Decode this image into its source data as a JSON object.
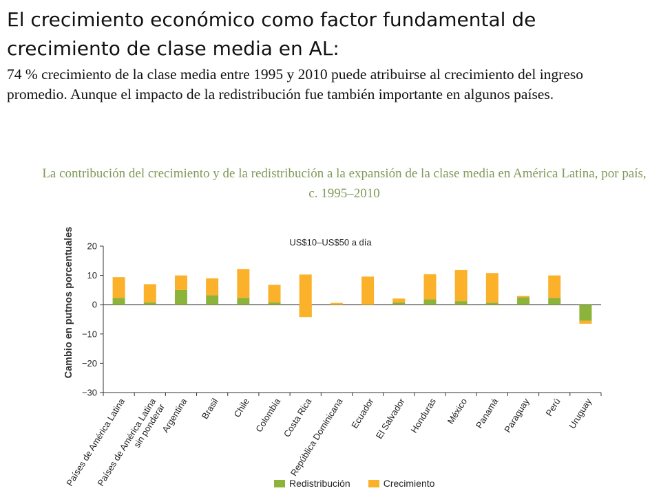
{
  "slide": {
    "heading": "El crecimiento económico como factor fundamental de crecimiento de clase media en AL:",
    "subheading": "74 % crecimiento de la clase media entre 1995 y 2010 puede atribuirse al crecimiento del ingreso promedio. Aunque el impacto de la redistribución fue también importante en algunos países."
  },
  "colors": {
    "redistribucion": "#8db43a",
    "crecimiento": "#fbb12a",
    "title": "#7f9a58",
    "axis": "#333333"
  },
  "chart_data": {
    "type": "bar",
    "stacked": true,
    "title": "La contribución del crecimiento y de la redistribución a la expansión de la clase media en América Latina, por país, c. 1995–2010",
    "annotation": "US$10–US$50 a día",
    "xlabel": "",
    "ylabel": "Cambio en putnos porcentuales",
    "ylim": [
      -30,
      20
    ],
    "yticks": [
      20,
      10,
      0,
      -10,
      -20,
      -30
    ],
    "ytick_labels": [
      "20",
      "10",
      "0",
      "−10",
      "−20",
      "−30"
    ],
    "grid": false,
    "legend_position": "bottom",
    "categories": [
      "Países de América Latina",
      "Países de América Latina sin ponderar",
      "Argentina",
      "Brasil",
      "Chile",
      "Colombia",
      "Costa Rica",
      "República Dominicana",
      "Ecuador",
      "El Salvador",
      "Honduras",
      "México",
      "Panamá",
      "Paraguay",
      "Perú",
      "Uruguay"
    ],
    "series": [
      {
        "name": "Redistribución",
        "values": [
          2.3,
          0.8,
          5.0,
          3.2,
          2.3,
          0.8,
          -4.2,
          0.0,
          0.0,
          0.8,
          1.8,
          1.2,
          0.7,
          2.5,
          2.3,
          -5.5
        ]
      },
      {
        "name": "Crecimiento",
        "values": [
          7.1,
          6.2,
          5.0,
          5.8,
          9.9,
          6.0,
          14.5,
          0.6,
          9.6,
          1.3,
          8.6,
          10.6,
          10.1,
          0.5,
          7.7,
          -1.0
        ]
      }
    ]
  }
}
